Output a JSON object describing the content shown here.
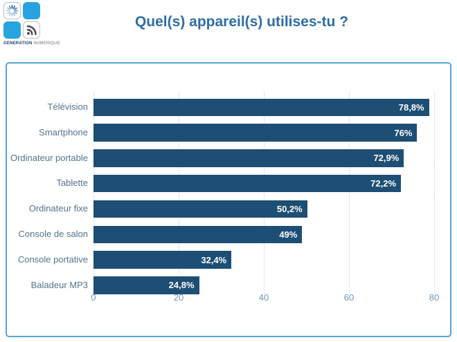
{
  "logo": {
    "brand_primary": "GENERATION",
    "brand_secondary": "NUMERIQUE",
    "tile_blue_color": "#29a3e0",
    "icons": [
      "spinner-icon",
      "rss-icon"
    ]
  },
  "header": {
    "title": "Quel(s) appareil(s) utilises-tu ?"
  },
  "chart_data": {
    "type": "bar",
    "orientation": "horizontal",
    "title": "Quel(s) appareil(s) utilises-tu ?",
    "categories": [
      "Télévision",
      "Smartphone",
      "Ordinateur portable",
      "Tablette",
      "Ordinateur fixe",
      "Console de salon",
      "Console portative",
      "Baladeur MP3"
    ],
    "values": [
      78.8,
      76,
      72.9,
      72.2,
      50.2,
      49,
      32.4,
      24.8
    ],
    "value_labels": [
      "78,8%",
      "76%",
      "72,9%",
      "72,2%",
      "50,2%",
      "49%",
      "32,4%",
      "24,8%"
    ],
    "xlabel": "",
    "ylabel": "",
    "xlim": [
      0,
      80
    ],
    "x_ticks": [
      0,
      20,
      40,
      60,
      80
    ],
    "grid": "vertical-dotted",
    "legend": "none",
    "bar_color": "#1d4e74",
    "value_label_color": "#ffffff",
    "category_label_color": "#54728e",
    "tick_label_color": "#7195b5",
    "panel_border_color": "#55a4d6"
  }
}
